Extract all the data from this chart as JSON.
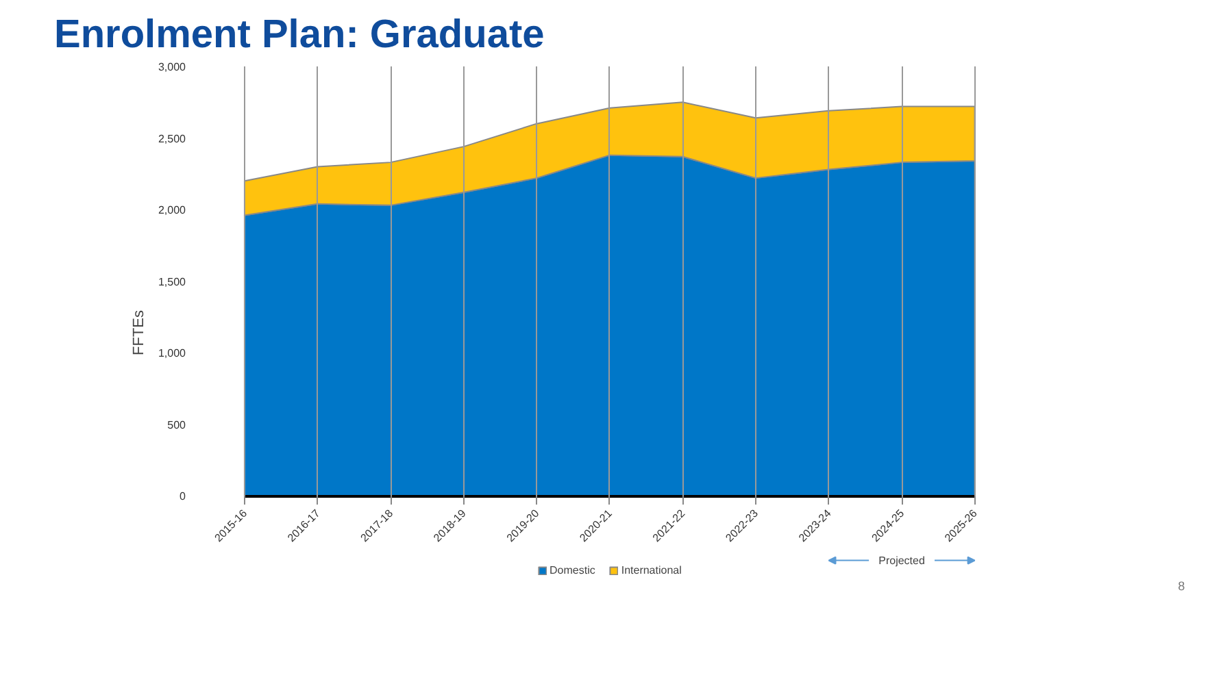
{
  "chart_data": {
    "type": "area",
    "title": "Enrolment Plan: Graduate",
    "ylabel": "FFTEs",
    "categories": [
      "2015-16",
      "2016-17",
      "2017-18",
      "2018-19",
      "2019-20",
      "2020-21",
      "2021-22",
      "2022-23",
      "2023-24",
      "2024-25",
      "2025-26"
    ],
    "stacked": true,
    "series": [
      {
        "name": "Domestic",
        "color": "#0077c8",
        "values": [
          1960,
          2040,
          2030,
          2120,
          2220,
          2380,
          2370,
          2220,
          2280,
          2330,
          2340
        ]
      },
      {
        "name": "International",
        "color": "#ffc20e",
        "values": [
          240,
          260,
          300,
          320,
          380,
          330,
          380,
          420,
          410,
          390,
          380
        ]
      }
    ],
    "ylim": [
      0,
      3000
    ],
    "yticks": [
      0,
      500,
      {
        "value": 1000,
        "label": "1,000"
      },
      {
        "value": 1500,
        "label": "1,500"
      },
      {
        "value": 2000,
        "label": "2,000"
      },
      {
        "value": 2500,
        "label": "2,500"
      },
      {
        "value": 3000,
        "label": "3,000"
      }
    ],
    "grid": "x",
    "legend": "bottom",
    "annotations": [
      "Projected",
      "8"
    ]
  }
}
